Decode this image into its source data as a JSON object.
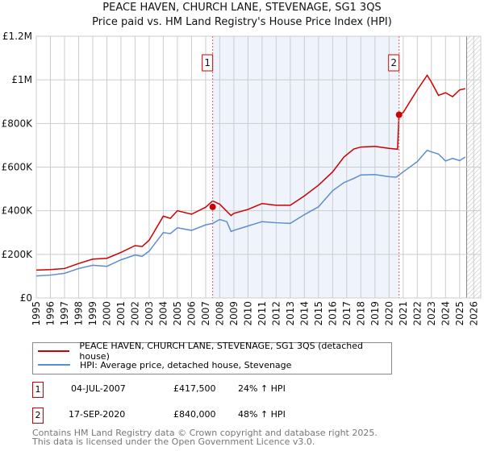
{
  "chart_data": {
    "type": "line",
    "title": "PEACE HAVEN, CHURCH LANE, STEVENAGE, SG1 3QS",
    "subtitle": "Price paid vs. HM Land Registry's House Price Index (HPI)",
    "xlim": [
      1995,
      2026.5
    ],
    "ylim": [
      0,
      1200000
    ],
    "x_ticks": [
      1995,
      1996,
      1997,
      1998,
      1999,
      2000,
      2001,
      2002,
      2003,
      2004,
      2005,
      2006,
      2007,
      2008,
      2009,
      2010,
      2011,
      2012,
      2013,
      2014,
      2015,
      2016,
      2017,
      2018,
      2019,
      2020,
      2021,
      2022,
      2023,
      2024,
      2025,
      2026
    ],
    "y_ticks": [
      {
        "v": 0,
        "label": "£0"
      },
      {
        "v": 200000,
        "label": "£200K"
      },
      {
        "v": 400000,
        "label": "£400K"
      },
      {
        "v": 600000,
        "label": "£600K"
      },
      {
        "v": 800000,
        "label": "£800K"
      },
      {
        "v": 1000000,
        "label": "£1M"
      },
      {
        "v": 1200000,
        "label": "£1.2M"
      }
    ],
    "grid": true,
    "shaded_range": [
      2007.5,
      2020.71
    ],
    "forecast_hatch_from": 2025.5,
    "series": [
      {
        "name": "PEACE HAVEN, CHURCH LANE, STEVENAGE, SG1 3QS (detached house)",
        "color": "#cc0000",
        "x": [
          1995,
          1996,
          1997,
          1998,
          1999,
          2000,
          2001,
          2002,
          2002.5,
          2003,
          2004,
          2004.5,
          2005,
          2006,
          2007,
          2007.5,
          2008,
          2008.8,
          2009,
          2010,
          2011,
          2012,
          2013,
          2014,
          2015,
          2016,
          2016.8,
          2017.5,
          2018,
          2019,
          2020,
          2020.6,
          2020.71,
          2021,
          2022,
          2022.7,
          2023,
          2023.5,
          2024,
          2024.5,
          2025,
          2025.4
        ],
        "y": [
          128000,
          130000,
          135000,
          158000,
          178000,
          182000,
          209000,
          240000,
          236000,
          265000,
          375000,
          365000,
          400000,
          384000,
          416000,
          445000,
          430000,
          378000,
          388000,
          406000,
          433000,
          425000,
          425000,
          468000,
          517000,
          578000,
          646000,
          683000,
          692000,
          695000,
          686000,
          682000,
          843000,
          850000,
          954000,
          1021000,
          990000,
          929000,
          941000,
          923000,
          954000,
          960000
        ]
      },
      {
        "name": "HPI: Average price, detached house, Stevenage",
        "color": "#5b8dd0",
        "x": [
          1995,
          1996,
          1997,
          1998,
          1999,
          2000,
          2001,
          2002,
          2002.5,
          2003,
          2004,
          2004.5,
          2005,
          2006,
          2007,
          2007.5,
          2008,
          2008.5,
          2008.8,
          2009,
          2010,
          2011,
          2012,
          2013,
          2014,
          2015,
          2016,
          2016.8,
          2017.5,
          2018,
          2019,
          2020,
          2020.5,
          2021,
          2022,
          2022.7,
          2023,
          2023.5,
          2024,
          2024.5,
          2025,
          2025.4
        ],
        "y": [
          101000,
          105000,
          113000,
          135000,
          150000,
          145000,
          175000,
          197000,
          191000,
          215000,
          300000,
          295000,
          322000,
          310000,
          335000,
          342000,
          360000,
          350000,
          305000,
          310000,
          330000,
          350000,
          345000,
          342000,
          382000,
          418000,
          492000,
          529000,
          548000,
          564000,
          566000,
          556000,
          554000,
          578000,
          625000,
          677000,
          670000,
          660000,
          628000,
          640000,
          630000,
          646000
        ]
      }
    ],
    "sales": [
      {
        "id": "1",
        "date": "04-JUL-2007",
        "x": 2007.5,
        "price": "£417,500",
        "value": 417500,
        "hpi": "24% ↑ HPI"
      },
      {
        "id": "2",
        "date": "17-SEP-2020",
        "x": 2020.71,
        "price": "£840,000",
        "value": 840000,
        "hpi": "48% ↑ HPI"
      }
    ]
  },
  "footer": {
    "line1": "Contains HM Land Registry data © Crown copyright and database right 2025.",
    "line2": "This data is licensed under the Open Government Licence v3.0."
  }
}
